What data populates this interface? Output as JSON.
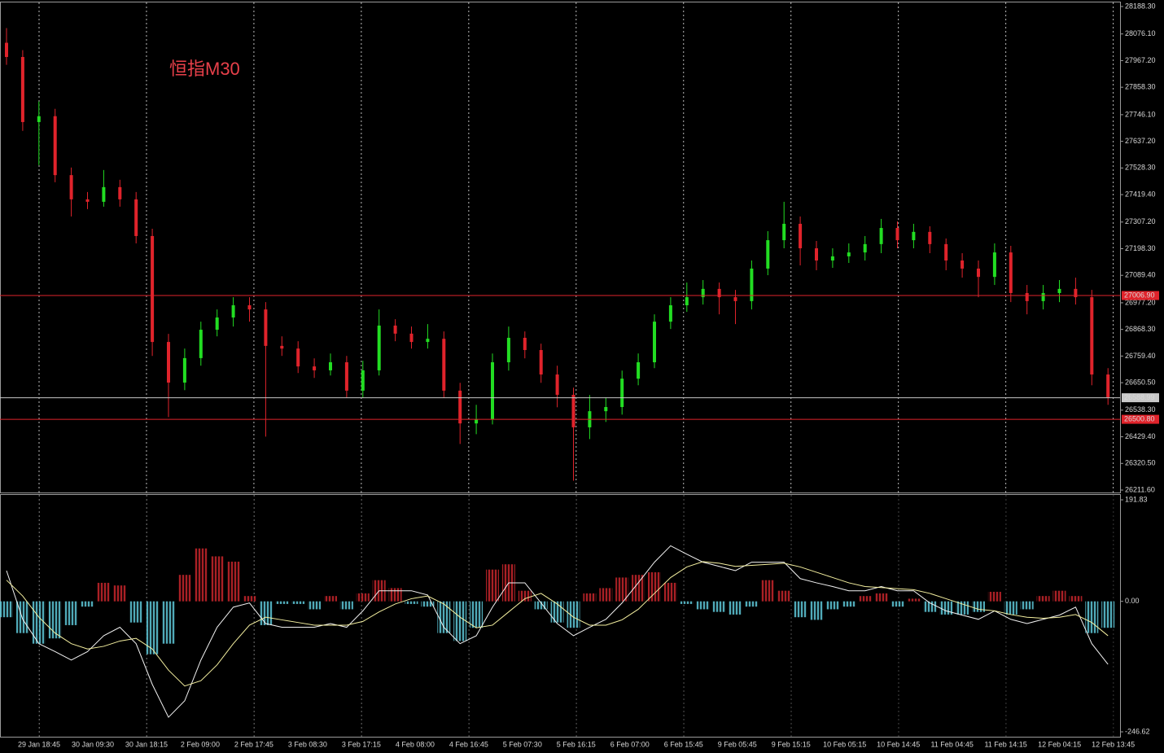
{
  "chart_data": {
    "type": "candlestick",
    "title": "恒指M30",
    "up_color": "#22dd22",
    "down_color": "#e0232b",
    "open": [
      28040,
      27982,
      27716,
      27740,
      27499,
      27400,
      27390,
      27450,
      27400,
      27250,
      26817,
      26651,
      26751,
      26867,
      26917,
      26967,
      26950,
      26801,
      26790,
      26717,
      26701,
      26734,
      26618,
      26701,
      26884,
      26851,
      26817,
      26830,
      26618,
      26484,
      26501,
      26734,
      26834,
      26784,
      26684,
      26601,
      26468,
      26534,
      26551,
      26667,
      26734,
      26900,
      26967,
      27000,
      27034,
      27000,
      26984,
      27117,
      27233,
      27300,
      27200,
      27150,
      27167,
      27183,
      27217,
      27283,
      27233,
      27267,
      27217,
      27150,
      27117,
      27083,
      27183,
      27017,
      26984,
      27017,
      27034,
      27000,
      26684
    ],
    "high": [
      28100,
      28010,
      27800,
      27770,
      27530,
      27430,
      27520,
      27480,
      27430,
      27280,
      26850,
      26790,
      26900,
      26950,
      27000,
      27000,
      26980,
      26840,
      26820,
      26750,
      26770,
      26760,
      26740,
      26950,
      26910,
      26880,
      26890,
      26860,
      26650,
      26560,
      26770,
      26880,
      26860,
      26810,
      26720,
      26630,
      26600,
      26590,
      26700,
      26770,
      26930,
      27000,
      27060,
      27070,
      27060,
      27030,
      27150,
      27270,
      27390,
      27330,
      27230,
      27200,
      27220,
      27250,
      27320,
      27310,
      27300,
      27290,
      27240,
      27180,
      27150,
      27220,
      27210,
      27050,
      27050,
      27070,
      27080,
      27030,
      26710
    ],
    "low": [
      27950,
      27680,
      27540,
      27470,
      27330,
      27360,
      27370,
      27370,
      27220,
      26760,
      26510,
      26620,
      26720,
      26840,
      26880,
      26900,
      26430,
      26760,
      26690,
      26670,
      26680,
      26590,
      26590,
      26680,
      26820,
      26790,
      26790,
      26590,
      26400,
      26440,
      26480,
      26700,
      26750,
      26650,
      26550,
      26250,
      26420,
      26490,
      26520,
      26640,
      26710,
      26870,
      26940,
      26970,
      26930,
      26890,
      26950,
      27090,
      27200,
      27130,
      27110,
      27120,
      27140,
      27150,
      27180,
      27200,
      27200,
      27180,
      27110,
      27080,
      27000,
      27050,
      26980,
      26930,
      26950,
      26980,
      26970,
      26640,
      26560
    ],
    "close": [
      27982,
      27716,
      27740,
      27499,
      27400,
      27390,
      27450,
      27400,
      27250,
      26817,
      26651,
      26751,
      26867,
      26917,
      26967,
      26950,
      26801,
      26790,
      26717,
      26701,
      26734,
      26618,
      26701,
      26884,
      26851,
      26817,
      26830,
      26618,
      26484,
      26501,
      26734,
      26834,
      26784,
      26684,
      26601,
      26468,
      26534,
      26551,
      26667,
      26734,
      26900,
      26967,
      27000,
      27034,
      27000,
      26984,
      27117,
      27233,
      27300,
      27200,
      27150,
      27167,
      27183,
      27217,
      27283,
      27233,
      27267,
      27217,
      27150,
      27117,
      27083,
      27183,
      27017,
      26984,
      27017,
      27034,
      27000,
      26684,
      26591
    ],
    "ylim": [
      26211.6,
      28188.3
    ],
    "yticks": [
      {
        "value": 28188.3,
        "label": "28188.30"
      },
      {
        "value": 28076.1,
        "label": "28076.10"
      },
      {
        "value": 27967.2,
        "label": "27967.20"
      },
      {
        "value": 27858.3,
        "label": "27858.30"
      },
      {
        "value": 27746.1,
        "label": "27746.10"
      },
      {
        "value": 27637.2,
        "label": "27637.20"
      },
      {
        "value": 27528.3,
        "label": "27528.30"
      },
      {
        "value": 27419.4,
        "label": "27419.40"
      },
      {
        "value": 27307.2,
        "label": "27307.20"
      },
      {
        "value": 27198.3,
        "label": "27198.30"
      },
      {
        "value": 27089.4,
        "label": "27089.40"
      },
      {
        "value": 26977.2,
        "label": "26977.20"
      },
      {
        "value": 26868.3,
        "label": "26868.30"
      },
      {
        "value": 26759.4,
        "label": "26759.40"
      },
      {
        "value": 26650.5,
        "label": "26650.50"
      },
      {
        "value": 26538.3,
        "label": "26538.30"
      },
      {
        "value": 26429.4,
        "label": "26429.40"
      },
      {
        "value": 26320.5,
        "label": "26320.50"
      },
      {
        "value": 26211.6,
        "label": "26211.60"
      }
    ],
    "hlines": [
      {
        "value": 27006.9,
        "label": "27006.90",
        "color": "#e0232b"
      },
      {
        "value": 26588.99,
        "color": "#c8c8c8"
      },
      {
        "value": 26500.8,
        "label": "26500.80",
        "color": "#e0232b"
      }
    ],
    "xtick_labels": [
      "29 Jan 18:45",
      "30 Jan 09:30",
      "30 Jan 18:15",
      "2 Feb 09:00",
      "2 Feb 17:45",
      "3 Feb 08:30",
      "3 Feb 17:15",
      "4 Feb 08:00",
      "4 Feb 16:45",
      "5 Feb 07:30",
      "5 Feb 16:15",
      "6 Feb 07:00",
      "6 Feb 15:45",
      "9 Feb 05:45",
      "9 Feb 15:15",
      "10 Feb 05:15",
      "10 Feb 14:45",
      "11 Feb 04:45",
      "11 Feb 14:15",
      "12 Feb 04:15",
      "12 Feb 13:45"
    ],
    "indicator": {
      "type": "macd",
      "hist_up_color": "#c8262c",
      "hist_down_color": "#5ec8d8",
      "histogram": [
        -30,
        -60,
        -80,
        -70,
        -45,
        -10,
        35,
        30,
        -40,
        -100,
        -80,
        50,
        100,
        85,
        75,
        10,
        -45,
        -5,
        -5,
        -15,
        10,
        -15,
        15,
        40,
        25,
        -5,
        -10,
        -60,
        -75,
        -50,
        60,
        70,
        20,
        -15,
        -40,
        -50,
        15,
        25,
        45,
        50,
        55,
        35,
        -5,
        -15,
        -20,
        -25,
        -10,
        40,
        20,
        -30,
        -35,
        -15,
        -10,
        10,
        15,
        -10,
        5,
        -20,
        -25,
        -25,
        -20,
        18,
        -25,
        -15,
        10,
        20,
        10,
        -60,
        -50
      ],
      "lines": [
        {
          "color": "#f2f2f2",
          "values": [
            58,
            -34,
            -80,
            -95,
            -111,
            -95,
            -65,
            -49,
            -80,
            -157,
            -219,
            -188,
            -111,
            -49,
            -11,
            -3,
            -42,
            -49,
            -49,
            -49,
            -42,
            -49,
            -18,
            20,
            20,
            20,
            12,
            -49,
            -80,
            -65,
            -11,
            35,
            35,
            -3,
            -42,
            -65,
            -49,
            -34,
            -3,
            35,
            74,
            105,
            89,
            74,
            66,
            58,
            74,
            74,
            74,
            43,
            35,
            28,
            20,
            20,
            28,
            20,
            20,
            -3,
            -18,
            -26,
            -34,
            -18,
            -34,
            -42,
            -34,
            -26,
            -11,
            -80,
            -119
          ]
        },
        {
          "color": "#f5f0a0",
          "values": [
            40,
            10,
            -30,
            -60,
            -80,
            -90,
            -85,
            -75,
            -70,
            -90,
            -130,
            -160,
            -150,
            -120,
            -80,
            -45,
            -30,
            -35,
            -40,
            -45,
            -45,
            -45,
            -38,
            -20,
            -5,
            5,
            10,
            -5,
            -30,
            -50,
            -45,
            -20,
            5,
            15,
            -5,
            -30,
            -45,
            -45,
            -35,
            -15,
            15,
            45,
            65,
            75,
            72,
            66,
            68,
            70,
            72,
            65,
            55,
            45,
            35,
            28,
            26,
            24,
            22,
            15,
            5,
            -5,
            -15,
            -18,
            -25,
            -30,
            -32,
            -30,
            -25,
            -40,
            -65
          ]
        }
      ],
      "ylim": [
        -246.62,
        191.83
      ],
      "yticks": [
        191.83,
        {
          "value": 0,
          "label": "0.00"
        },
        -246.62
      ]
    }
  }
}
